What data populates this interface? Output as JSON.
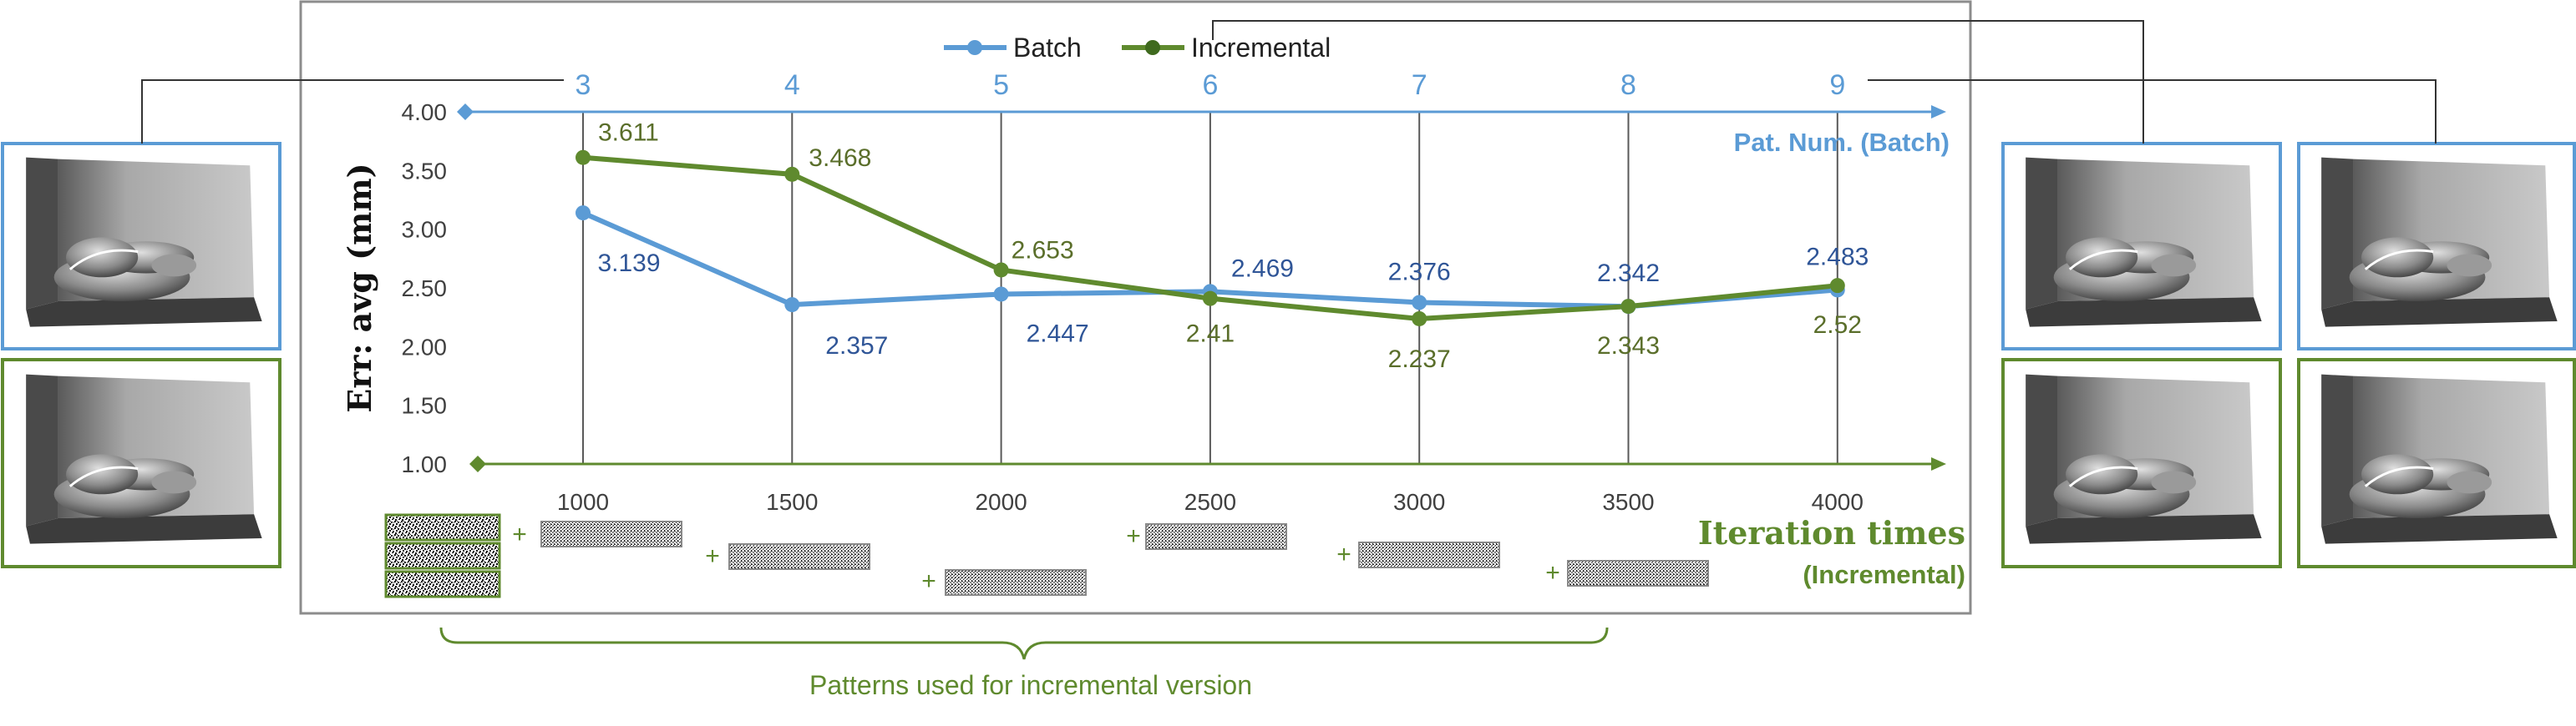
{
  "chart_data": {
    "type": "line",
    "legend_position": "top",
    "colors": {
      "batch": "#5B9BD5",
      "incremental": "#5F8A2E",
      "batch_label": "#2F5597",
      "incremental_label": "#5A6E2A"
    },
    "ylabel": "Err: avg (mm)",
    "ylim": [
      1.0,
      4.0
    ],
    "y_ticks": [
      "1.00",
      "1.50",
      "2.00",
      "2.50",
      "3.00",
      "3.50",
      "4.00"
    ],
    "top_axis": {
      "title": "Pat. Num. (Batch)",
      "ticks": [
        "3",
        "4",
        "5",
        "6",
        "7",
        "8",
        "9"
      ]
    },
    "bottom_axis": {
      "title_line1": "Iteration times",
      "title_line2": "(Incremental)",
      "ticks": [
        "1000",
        "1500",
        "2000",
        "2500",
        "3000",
        "3500",
        "4000"
      ]
    },
    "series": [
      {
        "name": "Batch",
        "values": [
          3.139,
          2.357,
          2.447,
          2.469,
          2.376,
          2.342,
          2.483
        ],
        "labels": [
          "3.139",
          "2.357",
          "2.447",
          "2.469",
          "2.376",
          "2.342",
          "2.483"
        ]
      },
      {
        "name": "Incremental",
        "values": [
          3.611,
          3.468,
          2.653,
          2.41,
          2.237,
          2.343,
          2.52
        ],
        "labels": [
          "3.611",
          "3.468",
          "2.653",
          "2.41",
          "2.237",
          "2.343",
          "2.52"
        ]
      }
    ],
    "plus_sign": "+",
    "patterns_caption": "Patterns used for incremental version"
  }
}
